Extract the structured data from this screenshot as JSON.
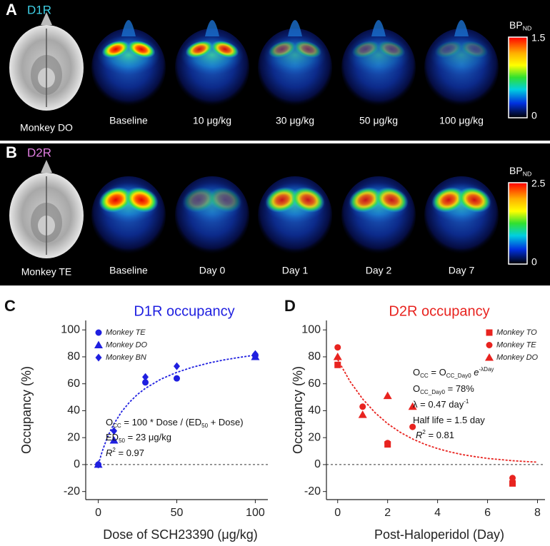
{
  "panel_a": {
    "letter": "A",
    "receptor": "D1R",
    "reference": "Monkey DO",
    "conditions": [
      "Baseline",
      "10 μg/kg",
      "30 μg/kg",
      "50 μg/kg",
      "100 μg/kg"
    ],
    "colorbar": {
      "title": [
        {
          "text": "BP"
        },
        {
          "sub": "ND"
        }
      ],
      "max": 1.5,
      "min": 0
    }
  },
  "panel_b": {
    "letter": "B",
    "receptor": "D2R",
    "reference": "Monkey TE",
    "conditions": [
      "Baseline",
      "Day 0",
      "Day 1",
      "Day 2",
      "Day 7"
    ],
    "colorbar": {
      "title": [
        {
          "text": "BP"
        },
        {
          "sub": "ND"
        }
      ],
      "max": 2.5,
      "min": 0
    }
  },
  "chart_data": [
    {
      "type": "scatter",
      "label": "C",
      "title": "D1R occupancy",
      "title_color": "#1f1fe0",
      "x_label": "Dose of SCH23390 (μg/kg)",
      "y_label": "Occupancy (%)",
      "xlim": [
        -8,
        108
      ],
      "ylim": [
        -26,
        107
      ],
      "xticks": [
        0,
        50,
        100
      ],
      "yticks": [
        -20,
        0,
        20,
        40,
        60,
        80,
        100
      ],
      "reference_line": 0,
      "legend": "upper left",
      "series": [
        {
          "name": "Monkey TE",
          "color": "#1f1fe0",
          "marker": "circle",
          "x": [
            0,
            30,
            50,
            100
          ],
          "values": [
            0,
            61,
            64,
            81
          ]
        },
        {
          "name": "Monkey DO",
          "color": "#1f1fe0",
          "marker": "triangle",
          "x": [
            0,
            10,
            100
          ],
          "values": [
            0,
            18,
            80
          ]
        },
        {
          "name": "Monkey BN",
          "color": "#1f1fe0",
          "marker": "diamond",
          "x": [
            0,
            10,
            30,
            50,
            100
          ],
          "values": [
            0,
            25,
            65,
            73,
            82
          ]
        }
      ],
      "fit": {
        "color": "#1f1fe0",
        "x": [
          0,
          2.5,
          5,
          7.5,
          10,
          15,
          20,
          25,
          30,
          40,
          50,
          60,
          70,
          80,
          90,
          100
        ],
        "values": [
          0,
          9.8,
          17.9,
          24.6,
          30.3,
          39.5,
          46.5,
          52.1,
          56.6,
          63.5,
          68.5,
          72.3,
          75.3,
          77.7,
          79.6,
          81.3
        ]
      },
      "annotations": [
        [
          {
            "text": "O"
          },
          {
            "sub": "CC"
          },
          {
            "text": " = 100 * Dose / (ED"
          },
          {
            "sub": "50"
          },
          {
            "text": " + Dose)"
          }
        ],
        [
          {
            "text": "ED"
          },
          {
            "sub": "50"
          },
          {
            "text": " = 23 μg/kg"
          }
        ],
        [
          {
            "italic": "R"
          },
          {
            "sup": "2"
          },
          {
            "text": " = 0.97"
          }
        ]
      ]
    },
    {
      "type": "scatter",
      "label": "D",
      "title": "D2R occupancy",
      "title_color": "#e8231f",
      "x_label": "Post-Haloperidol (Day)",
      "y_label": "Occupancy (%)",
      "xlim": [
        -0.45,
        8.3
      ],
      "ylim": [
        -26,
        107
      ],
      "xticks": [
        0,
        2,
        4,
        6,
        8
      ],
      "yticks": [
        -20,
        0,
        20,
        40,
        60,
        80,
        100
      ],
      "reference_line": 0,
      "legend": "upper right",
      "series": [
        {
          "name": "Monkey TO",
          "color": "#e8231f",
          "marker": "square",
          "x": [
            0,
            2,
            7
          ],
          "values": [
            74,
            15,
            -14
          ]
        },
        {
          "name": "Monkey TE",
          "color": "#e8231f",
          "marker": "circle",
          "x": [
            0,
            1,
            2,
            3,
            7
          ],
          "values": [
            87,
            43,
            16,
            28,
            -10
          ]
        },
        {
          "name": "Monkey DO",
          "color": "#e8231f",
          "marker": "triangle",
          "x": [
            0,
            1,
            2,
            3
          ],
          "values": [
            80,
            37,
            51,
            43
          ]
        }
      ],
      "fit": {
        "color": "#e8231f",
        "x": [
          0,
          0.5,
          1,
          1.5,
          2,
          2.5,
          3,
          3.5,
          4,
          4.5,
          5,
          5.5,
          6,
          6.5,
          7,
          7.5,
          8
        ],
        "values": [
          78,
          61.6,
          48.7,
          38.5,
          30.4,
          24.0,
          19.0,
          15.0,
          11.9,
          9.4,
          7.4,
          5.9,
          4.6,
          3.7,
          2.9,
          2.3,
          1.8
        ]
      },
      "annotations": [
        [
          {
            "text": "O"
          },
          {
            "sub": "CC"
          },
          {
            "text": " = O"
          },
          {
            "sub": "CC_Day0"
          },
          {
            "text": " "
          },
          {
            "italic": "e"
          },
          {
            "sup": "-λDay"
          }
        ],
        [
          {
            "text": "O"
          },
          {
            "sub": "CC_Day0"
          },
          {
            "text": " = 78%"
          }
        ],
        [
          {
            "text": "λ = 0.47 day"
          },
          {
            "sup": "-1"
          }
        ],
        [
          {
            "text": "Half life = 1.5 day"
          }
        ],
        [
          {
            "italic": "R"
          },
          {
            "sup": "2"
          },
          {
            "text": " = 0.81"
          }
        ]
      ]
    }
  ]
}
